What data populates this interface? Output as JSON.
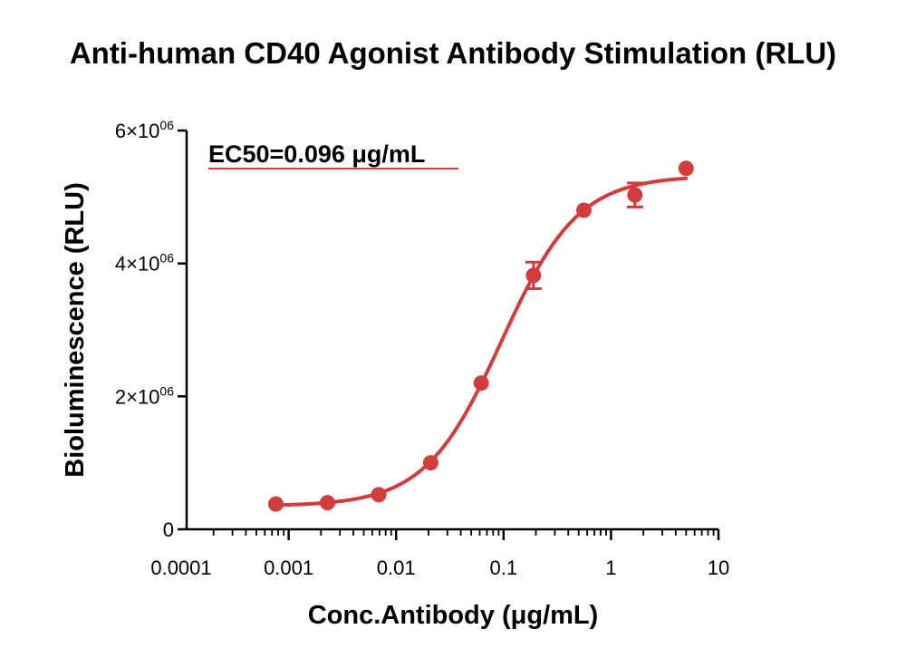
{
  "chart_data": {
    "type": "scatter",
    "title": "Anti-human CD40 Agonist Antibody Stimulation (RLU)",
    "xlabel": "Conc.Antibody (μg/mL)",
    "ylabel": "Bioluminescence (RLU)",
    "x_scale": "log",
    "xlim": [
      0.0001,
      10
    ],
    "ylim": [
      0,
      6000000
    ],
    "x_ticks": [
      {
        "value": 0.0001,
        "label": "0.0001"
      },
      {
        "value": 0.001,
        "label": "0.001"
      },
      {
        "value": 0.01,
        "label": "0.01"
      },
      {
        "value": 0.1,
        "label": "0.1"
      },
      {
        "value": 1,
        "label": "1"
      },
      {
        "value": 10,
        "label": "10"
      }
    ],
    "y_ticks": [
      {
        "value": 0,
        "mantissa": "0",
        "times": "",
        "base": "",
        "exp": ""
      },
      {
        "value": 2000000,
        "mantissa": "2",
        "times": "×",
        "base": "10",
        "exp": "06"
      },
      {
        "value": 4000000,
        "mantissa": "4",
        "times": "×",
        "base": "10",
        "exp": "06"
      },
      {
        "value": 6000000,
        "mantissa": "6",
        "times": "×",
        "base": "10",
        "exp": "06"
      }
    ],
    "annotation": "EC50=0.096 μg/mL",
    "series": [
      {
        "color": "#d23c3c",
        "x": [
          0.00076,
          0.0023,
          0.0069,
          0.021,
          0.062,
          0.19,
          0.56,
          1.67,
          5.0
        ],
        "y": [
          380000,
          400000,
          520000,
          1000000,
          2200000,
          3820000,
          4800000,
          5030000,
          5430000
        ],
        "yerr": [
          20000,
          20000,
          20000,
          20000,
          30000,
          200000,
          30000,
          180000,
          30000
        ],
        "fit": {
          "model": "4PL",
          "bottom": 350000,
          "top": 5320000,
          "ec50": 0.096,
          "hill": 1.22
        }
      }
    ],
    "grid": false,
    "legend": "none"
  }
}
